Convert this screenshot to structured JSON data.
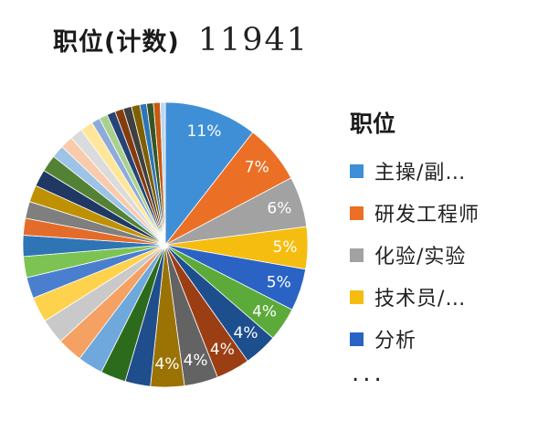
{
  "header": {
    "label": "职位(计数)",
    "count": "11941"
  },
  "chart_data": {
    "type": "pie",
    "title": "",
    "legend_position": "right",
    "legend": {
      "title": "职位",
      "entries": [
        {
          "label": "主操/副…",
          "color": "#3f8fd6"
        },
        {
          "label": "研发工程师",
          "color": "#ec6f26"
        },
        {
          "label": "化验/实验",
          "color": "#a2a2a2"
        },
        {
          "label": "技术员/…",
          "color": "#f5bd0f"
        },
        {
          "label": "分析",
          "color": "#2a63c4"
        }
      ],
      "more": "..."
    },
    "slices": [
      {
        "label": "主操/副…",
        "value": 11,
        "label_text": "11%",
        "color": "#3f8fd6"
      },
      {
        "label": "研发工程师",
        "value": 7,
        "label_text": "7%",
        "color": "#ec6f26"
      },
      {
        "label": "化验/实验",
        "value": 6,
        "label_text": "6%",
        "color": "#a2a2a2"
      },
      {
        "label": "技术员/…",
        "value": 5,
        "label_text": "5%",
        "color": "#f5bd0f"
      },
      {
        "label": "分析",
        "value": 5,
        "label_text": "5%",
        "color": "#2a63c4"
      },
      {
        "label": "",
        "value": 4,
        "label_text": "4%",
        "color": "#5cab3a"
      },
      {
        "label": "",
        "value": 4,
        "label_text": "4%",
        "color": "#1d4f8f"
      },
      {
        "label": "",
        "value": 4,
        "label_text": "4%",
        "color": "#9c3e14"
      },
      {
        "label": "",
        "value": 4,
        "label_text": "4%",
        "color": "#636363"
      },
      {
        "label": "",
        "value": 4,
        "label_text": "4%",
        "color": "#9b7305"
      },
      {
        "label": "",
        "value": 3,
        "label_text": "",
        "color": "#1f4e8c"
      },
      {
        "label": "",
        "value": 3,
        "label_text": "",
        "color": "#2d6b1c"
      },
      {
        "label": "",
        "value": 3,
        "label_text": "",
        "color": "#6fa8dc"
      },
      {
        "label": "",
        "value": 3,
        "label_text": "",
        "color": "#f4a163"
      },
      {
        "label": "",
        "value": 3,
        "label_text": "",
        "color": "#c9c9c9"
      },
      {
        "label": "",
        "value": 3,
        "label_text": "",
        "color": "#ffd24d"
      },
      {
        "label": "",
        "value": 2.5,
        "label_text": "",
        "color": "#4a7fd0"
      },
      {
        "label": "",
        "value": 2.5,
        "label_text": "",
        "color": "#7cc354"
      },
      {
        "label": "",
        "value": 2.5,
        "label_text": "",
        "color": "#2f75b5"
      },
      {
        "label": "",
        "value": 2,
        "label_text": "",
        "color": "#e36c2a"
      },
      {
        "label": "",
        "value": 2,
        "label_text": "",
        "color": "#7f7f7f"
      },
      {
        "label": "",
        "value": 2,
        "label_text": "",
        "color": "#bf9000"
      },
      {
        "label": "",
        "value": 2,
        "label_text": "",
        "color": "#1f3864"
      },
      {
        "label": "",
        "value": 2,
        "label_text": "",
        "color": "#548235"
      },
      {
        "label": "",
        "value": 1.5,
        "label_text": "",
        "color": "#9dc3e6"
      },
      {
        "label": "",
        "value": 1.5,
        "label_text": "",
        "color": "#f8cbad"
      },
      {
        "label": "",
        "value": 1.5,
        "label_text": "",
        "color": "#dbdbdb"
      },
      {
        "label": "",
        "value": 1.5,
        "label_text": "",
        "color": "#ffe699"
      },
      {
        "label": "",
        "value": 1,
        "label_text": "",
        "color": "#8eaadb"
      },
      {
        "label": "",
        "value": 1,
        "label_text": "",
        "color": "#a9d18e"
      },
      {
        "label": "",
        "value": 1,
        "label_text": "",
        "color": "#264478"
      },
      {
        "label": "",
        "value": 1,
        "label_text": "",
        "color": "#843c0c"
      },
      {
        "label": "",
        "value": 1,
        "label_text": "",
        "color": "#404040"
      },
      {
        "label": "",
        "value": 1,
        "label_text": "",
        "color": "#7f6000"
      },
      {
        "label": "",
        "value": 0.8,
        "label_text": "",
        "color": "#2e75b6"
      },
      {
        "label": "",
        "value": 0.8,
        "label_text": "",
        "color": "#375623"
      },
      {
        "label": "",
        "value": 0.8,
        "label_text": "",
        "color": "#c55a11"
      },
      {
        "label": "",
        "value": 0.6,
        "label_text": "",
        "color": "#bdd7ee"
      }
    ]
  }
}
